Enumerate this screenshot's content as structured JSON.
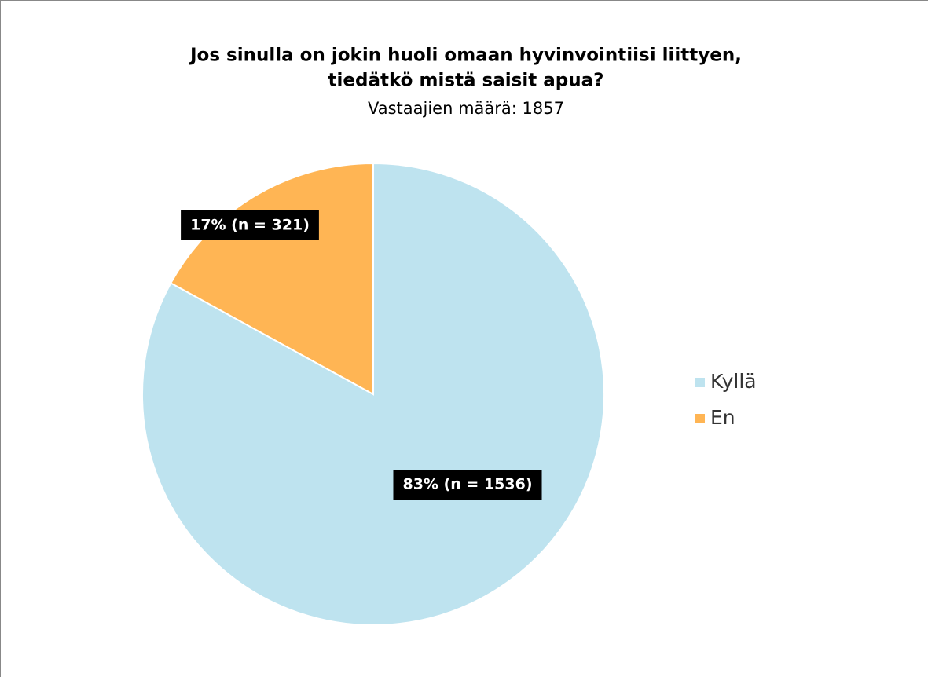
{
  "chart_data": {
    "type": "pie",
    "title": [
      "Jos sinulla on jokin huoli omaan hyvinvointiisi liittyen,",
      "tiedätkö mistä saisit apua?"
    ],
    "subtitle": "Vastaajien määrä: 1857",
    "categories": [
      "Kyllä",
      "En"
    ],
    "values": [
      83,
      17
    ],
    "value_labels": [
      "83% (n = 1536)",
      "17% (n = 321)"
    ],
    "colors": [
      "#bee3ef",
      "#ffb554"
    ],
    "legend": "right"
  }
}
